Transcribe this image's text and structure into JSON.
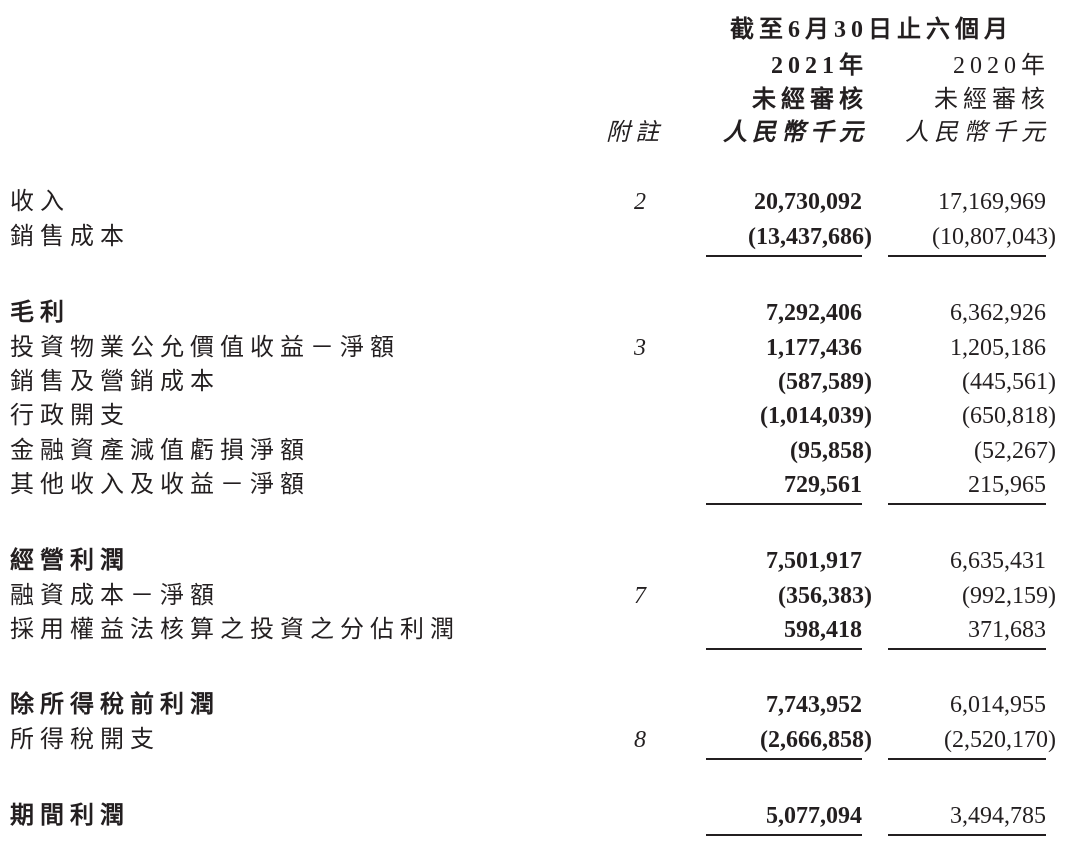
{
  "header": {
    "period": "截至6月30日止六個月",
    "year_2021": "2021年",
    "year_2020": "2020年",
    "audit_2021": "未經審核",
    "audit_2020": "未經審核",
    "note_label": "附註",
    "unit_2021": "人民幣千元",
    "unit_2020": "人民幣千元"
  },
  "rows": [
    {
      "label": "收入",
      "note": "2",
      "v2021": "20,730,092",
      "v2020": "17,169,969",
      "bold": false
    },
    {
      "label": "銷售成本",
      "note": "",
      "v2021": "(13,437,686)",
      "v2020": "(10,807,043)",
      "bold": false,
      "underline": true
    },
    {
      "label": "毛利",
      "note": "",
      "v2021": "7,292,406",
      "v2020": "6,362,926",
      "bold": true
    },
    {
      "label": "投資物業公允價值收益－淨額",
      "note": "3",
      "v2021": "1,177,436",
      "v2020": "1,205,186",
      "bold": false
    },
    {
      "label": "銷售及營銷成本",
      "note": "",
      "v2021": "(587,589)",
      "v2020": "(445,561)",
      "bold": false
    },
    {
      "label": "行政開支",
      "note": "",
      "v2021": "(1,014,039)",
      "v2020": "(650,818)",
      "bold": false
    },
    {
      "label": "金融資產減值虧損淨額",
      "note": "",
      "v2021": "(95,858)",
      "v2020": "(52,267)",
      "bold": false
    },
    {
      "label": "其他收入及收益－淨額",
      "note": "",
      "v2021": "729,561",
      "v2020": "215,965",
      "bold": false,
      "underline": true
    },
    {
      "label": "經營利潤",
      "note": "",
      "v2021": "7,501,917",
      "v2020": "6,635,431",
      "bold": true
    },
    {
      "label": "融資成本－淨額",
      "note": "7",
      "v2021": "(356,383)",
      "v2020": "(992,159)",
      "bold": false
    },
    {
      "label": "採用權益法核算之投資之分佔利潤",
      "note": "",
      "v2021": "598,418",
      "v2020": "371,683",
      "bold": false,
      "underline": true
    },
    {
      "label": "除所得稅前利潤",
      "note": "",
      "v2021": "7,743,952",
      "v2020": "6,014,955",
      "bold": true
    },
    {
      "label": "所得稅開支",
      "note": "8",
      "v2021": "(2,666,858)",
      "v2020": "(2,520,170)",
      "bold": false,
      "underline": true
    },
    {
      "label": "期間利潤",
      "note": "",
      "v2021": "5,077,094",
      "v2020": "3,494,785",
      "bold": true,
      "underline": true
    }
  ]
}
